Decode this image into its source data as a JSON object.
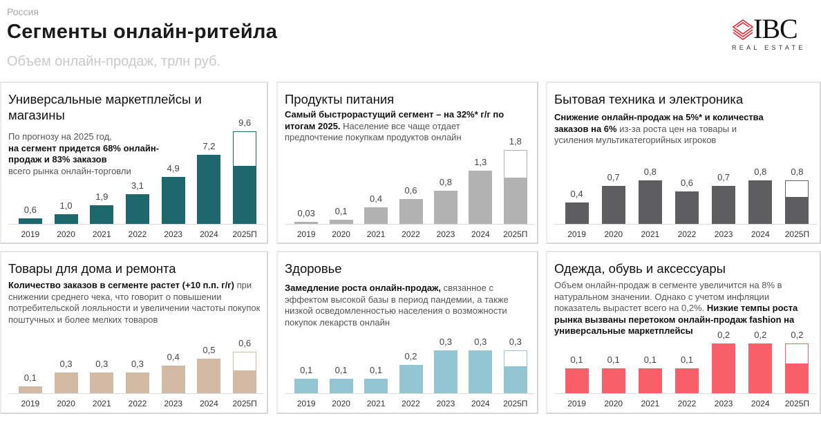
{
  "header": {
    "region": "Россия",
    "title": "Сегменты онлайн-ритейла",
    "subtitle": "Объем онлайн-продаж, трлн руб."
  },
  "logo": {
    "name": "IBC",
    "tagline": "REAL ESTATE",
    "icon": "stacked-diamonds-icon",
    "accent": "#e3262f"
  },
  "chart_data": [
    {
      "type": "bar",
      "title": "Универсальные маркетплейсы и магазины",
      "description": [
        {
          "text": "По прогнозу на 2025 год,",
          "bold": false
        },
        {
          "text": "на сегмент придется 68% онлайн-продаж и 83% заказов",
          "bold": true
        },
        {
          "text": "всего рынка онлайн-торговли",
          "bold": false
        }
      ],
      "categories": [
        "2019",
        "2020",
        "2021",
        "2022",
        "2023",
        "2024",
        "2025П"
      ],
      "values": [
        0.6,
        1.0,
        1.9,
        3.1,
        4.9,
        7.2,
        9.6
      ],
      "labels": [
        "0,6",
        "1,0",
        "1,9",
        "3,1",
        "4,9",
        "7,2",
        "9,6"
      ],
      "forecast_filled_share": 0.63,
      "color": "#1e686d"
    },
    {
      "type": "bar",
      "title": "Продукты питания",
      "description": [
        {
          "text": "Самый быстрорастущий сегмент – на 32%* г/г по итогам 2025.",
          "bold": true
        },
        {
          "text": " Население все чаще отдает предпочтение покупкам продуктов онлайн",
          "bold": false
        }
      ],
      "categories": [
        "2019",
        "2020",
        "2021",
        "2022",
        "2023",
        "2024",
        "2025П"
      ],
      "values": [
        0.03,
        0.1,
        0.4,
        0.6,
        0.8,
        1.3,
        1.8
      ],
      "labels": [
        "0,03",
        "0,1",
        "0,4",
        "0,6",
        "0,8",
        "1,3",
        "1,8"
      ],
      "forecast_filled_share": 0.63,
      "color": "#b2b2b2"
    },
    {
      "type": "bar",
      "title": "Бытовая техника и электроника",
      "description": [
        {
          "text": "Снижение онлайн-продаж на 5%* и количества заказов на 6%",
          "bold": true
        },
        {
          "text": " из-за роста цен на товары и усиления мультикатегорийных игроков",
          "bold": false
        }
      ],
      "categories": [
        "2019",
        "2020",
        "2021",
        "2022",
        "2023",
        "2024",
        "2025П"
      ],
      "values": [
        0.4,
        0.7,
        0.8,
        0.6,
        0.7,
        0.8,
        0.8
      ],
      "labels": [
        "0,4",
        "0,7",
        "0,8",
        "0,6",
        "0,7",
        "0,8",
        "0,8"
      ],
      "forecast_filled_share": 0.63,
      "color": "#5e5e61"
    },
    {
      "type": "bar",
      "title": "Товары для дома и ремонта",
      "description": [
        {
          "text": "Количество заказов в сегменте растет (+10 п.п. г/г)",
          "bold": true
        },
        {
          "text": " при снижении среднего чека, что говорит о повышении потребительской лояльности и увеличении частоты покупок поштучных и более мелких товаров",
          "bold": false
        }
      ],
      "categories": [
        "2019",
        "2020",
        "2021",
        "2022",
        "2023",
        "2024",
        "2025П"
      ],
      "values": [
        0.1,
        0.3,
        0.3,
        0.3,
        0.4,
        0.5,
        0.6
      ],
      "labels": [
        "0,1",
        "0,3",
        "0,3",
        "0,3",
        "0,4",
        "0,5",
        "0,6"
      ],
      "forecast_filled_share": 0.55,
      "color": "#d2baa5"
    },
    {
      "type": "bar",
      "title": "Здоровье",
      "description": [
        {
          "text": "Замедление роста онлайн-продаж,",
          "bold": true
        },
        {
          "text": " связанное с эффектом высокой базы в период пандемии, а также низкой осведомленностью населения о возможности покупок лекарств онлайн",
          "bold": false
        }
      ],
      "categories": [
        "2019",
        "2020",
        "2021",
        "2022",
        "2023",
        "2024",
        "2025П"
      ],
      "values": [
        0.1,
        0.1,
        0.1,
        0.2,
        0.3,
        0.3,
        0.3
      ],
      "labels": [
        "0,1",
        "0,1",
        "0,1",
        "0,2",
        "0,3",
        "0,3",
        "0,3"
      ],
      "forecast_filled_share": 0.63,
      "color": "#93c5d3"
    },
    {
      "type": "bar",
      "title": "Одежда, обувь и аксессуары",
      "description": [
        {
          "text": "Объем онлайн-продаж в сегменте увеличится на 8% в натуральном значении. Однако с учетом инфляции показатель вырастет всего на 0,2%.",
          "bold": false
        },
        {
          "text": " Низкие темпы роста рынка вызваны перетоком онлайн-продаж fashion на универсальные маркетплейсы",
          "bold": true
        }
      ],
      "categories": [
        "2019",
        "2020",
        "2021",
        "2022",
        "2023",
        "2024",
        "2025П"
      ],
      "values": [
        0.1,
        0.1,
        0.1,
        0.1,
        0.2,
        0.2,
        0.2
      ],
      "labels": [
        "0,1",
        "0,1",
        "0,1",
        "0,1",
        "0,2",
        "0,2",
        "0,2"
      ],
      "forecast_filled_share": 0.6,
      "color": "#f95f69"
    }
  ]
}
